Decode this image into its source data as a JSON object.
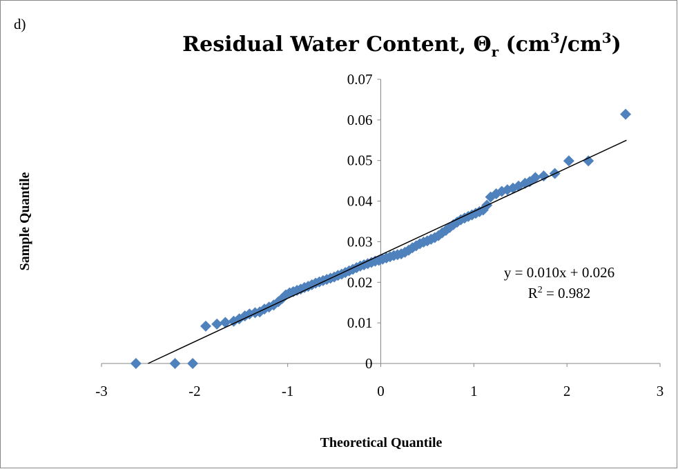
{
  "chart_data": {
    "type": "scatter",
    "panel_label": "d)",
    "title": [
      "Residual Water Content, ",
      "Θ",
      "r",
      " (cm",
      "3",
      "/cm",
      "3",
      ")"
    ],
    "x_label": "Theoretical Quantile",
    "y_label": "Sample Quantile",
    "xlim": [
      -3,
      3
    ],
    "xticks": [
      -3,
      -2,
      -1,
      0,
      1,
      2,
      3
    ],
    "ylim": [
      0,
      0.07
    ],
    "yticks": [
      0,
      0.01,
      0.02,
      0.03,
      0.04,
      0.05,
      0.06,
      0.07
    ],
    "grid": false,
    "series": [
      {
        "color": "#4f81bd",
        "x": [
          -2.63,
          -2.21,
          -2.02,
          -1.88,
          -1.76,
          -1.67,
          -1.58,
          -1.52,
          -1.46,
          -1.41,
          -1.35,
          -1.3,
          -1.25,
          -1.2,
          -1.15,
          -1.1,
          -1.06,
          -1.02,
          -0.98,
          -0.94,
          -0.9,
          -0.86,
          -0.82,
          -0.78,
          -0.74,
          -0.7,
          -0.66,
          -0.62,
          -0.58,
          -0.54,
          -0.5,
          -0.46,
          -0.42,
          -0.38,
          -0.34,
          -0.3,
          -0.26,
          -0.22,
          -0.18,
          -0.14,
          -0.1,
          -0.06,
          -0.02,
          0.02,
          0.06,
          0.1,
          0.14,
          0.18,
          0.22,
          0.26,
          0.3,
          0.34,
          0.38,
          0.42,
          0.46,
          0.5,
          0.54,
          0.58,
          0.62,
          0.66,
          0.7,
          0.74,
          0.78,
          0.82,
          0.86,
          0.9,
          0.94,
          0.98,
          1.02,
          1.06,
          1.1,
          1.14,
          1.18,
          1.24,
          1.3,
          1.36,
          1.42,
          1.48,
          1.55,
          1.6,
          1.66,
          1.75,
          1.87,
          2.02,
          2.23,
          2.63
        ],
        "values": [
          0,
          0,
          0,
          0.0092,
          0.0097,
          0.0101,
          0.0104,
          0.011,
          0.0117,
          0.0122,
          0.0125,
          0.0127,
          0.0134,
          0.0139,
          0.0144,
          0.0152,
          0.016,
          0.0169,
          0.0174,
          0.0177,
          0.018,
          0.0183,
          0.0187,
          0.019,
          0.0194,
          0.0198,
          0.0201,
          0.0204,
          0.0207,
          0.021,
          0.0213,
          0.0217,
          0.022,
          0.0224,
          0.0228,
          0.0232,
          0.0236,
          0.024,
          0.0243,
          0.0246,
          0.0249,
          0.0252,
          0.0254,
          0.0257,
          0.026,
          0.0263,
          0.0266,
          0.0268,
          0.027,
          0.0274,
          0.0279,
          0.0285,
          0.029,
          0.0295,
          0.0299,
          0.0302,
          0.0306,
          0.031,
          0.0315,
          0.0322,
          0.0328,
          0.0335,
          0.0342,
          0.0348,
          0.0354,
          0.0358,
          0.0362,
          0.0366,
          0.037,
          0.0374,
          0.0378,
          0.039,
          0.041,
          0.0418,
          0.0424,
          0.0428,
          0.0432,
          0.0437,
          0.0444,
          0.0448,
          0.0458,
          0.0462,
          0.0468,
          0.0499,
          0.0499,
          0.0614
        ]
      }
    ],
    "trendline": {
      "color": "#000000",
      "x": [
        -2.5,
        2.64
      ],
      "y": [
        0,
        0.055
      ]
    },
    "equation": "y = 0.010x + 0.026",
    "r_squared": [
      "R",
      "2",
      " = 0.982"
    ]
  }
}
